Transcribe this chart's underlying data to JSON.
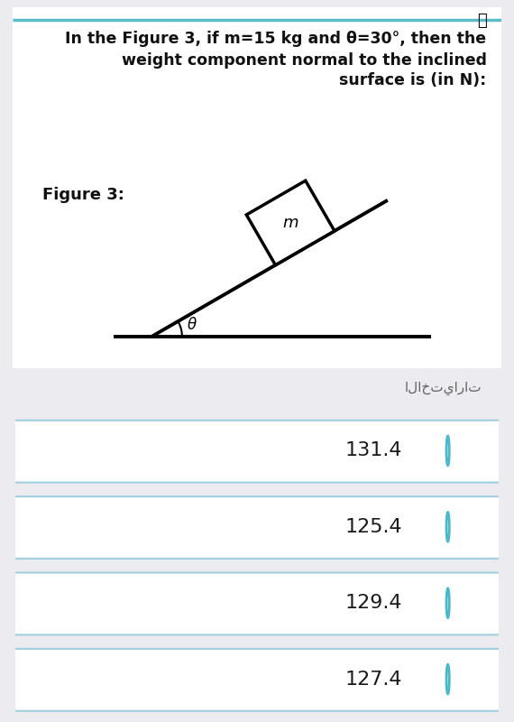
{
  "bg_color": "#ebebf0",
  "card_bg": "#ffffff",
  "top_line_color": "#5abdc8",
  "question_lines": [
    "In the Figure 3, if m=15 kg and θ=30°, then the",
    "weight component normal to the inclined",
    "surface is (in N):"
  ],
  "figure_label": "Figure 3:",
  "box_label": "m",
  "angle_label": "θ",
  "choices_header": "الاختيارات",
  "choices": [
    "131.4",
    "125.4",
    "129.4",
    "127.4"
  ],
  "choice_bg": "#ffffff",
  "choice_border": "#a0cfe0",
  "choice_text_color": "#1a1a1a",
  "radio_color": "#4db8cc",
  "question_fontsize": 12.5,
  "figure_label_fontsize": 13,
  "choice_fontsize": 16,
  "header_fontsize": 11
}
